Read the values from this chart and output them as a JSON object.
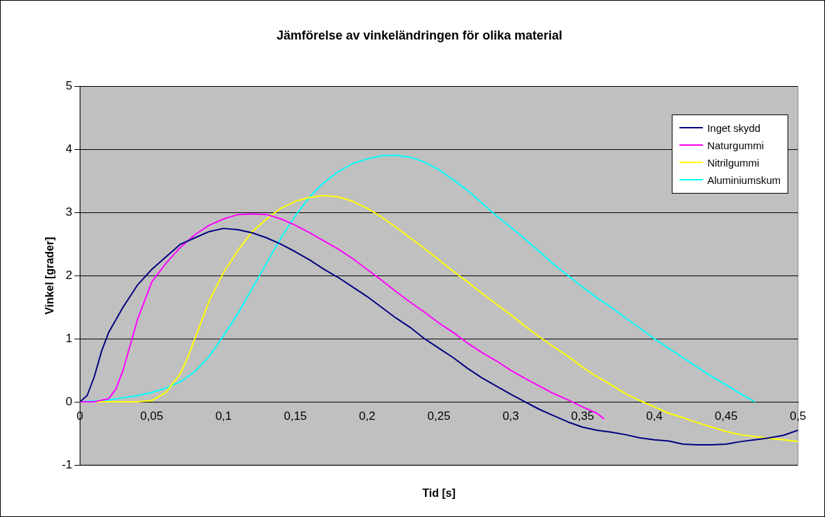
{
  "chart_data": {
    "type": "line",
    "title": "Jämförelse av vinkeländringen för olika material",
    "xlabel": "Tid [s]",
    "ylabel": "Vinkel [grader]",
    "xlim": [
      0,
      0.5
    ],
    "xticks": [
      0,
      {
        "value": 0.05,
        "label": "0,05"
      },
      {
        "value": 0.1,
        "label": "0,1"
      },
      {
        "value": 0.15,
        "label": "0,15"
      },
      {
        "value": 0.2,
        "label": "0,2"
      },
      {
        "value": 0.25,
        "label": "0,25"
      },
      {
        "value": 0.3,
        "label": "0,3"
      },
      {
        "value": 0.35,
        "label": "0,35"
      },
      {
        "value": 0.4,
        "label": "0,4"
      },
      {
        "value": 0.45,
        "label": "0,45"
      },
      {
        "value": 0.5,
        "label": "0,5"
      }
    ],
    "ylim": [
      -1,
      5
    ],
    "yticks": [
      -1,
      0,
      1,
      2,
      3,
      4,
      5
    ],
    "grid": "y",
    "legend": "top right",
    "marker": "none",
    "line_style": "solid",
    "series": [
      {
        "name": "Inget skydd",
        "color": "#000080",
        "x": [
          0,
          0.005,
          0.01,
          0.015,
          0.02,
          0.03,
          0.04,
          0.05,
          0.06,
          0.07,
          0.08,
          0.09,
          0.1,
          0.11,
          0.12,
          0.13,
          0.14,
          0.15,
          0.16,
          0.17,
          0.18,
          0.19,
          0.2,
          0.21,
          0.22,
          0.23,
          0.24,
          0.25,
          0.26,
          0.27,
          0.28,
          0.29,
          0.3,
          0.31,
          0.32,
          0.33,
          0.34,
          0.35,
          0.36,
          0.37,
          0.38,
          0.39,
          0.4,
          0.41,
          0.42,
          0.43,
          0.44,
          0.45,
          0.46,
          0.47,
          0.48,
          0.49,
          0.5
        ],
        "values": [
          0,
          0.1,
          0.4,
          0.8,
          1.1,
          1.5,
          1.85,
          2.1,
          2.3,
          2.5,
          2.6,
          2.7,
          2.75,
          2.73,
          2.68,
          2.6,
          2.5,
          2.38,
          2.25,
          2.1,
          1.97,
          1.82,
          1.67,
          1.5,
          1.33,
          1.18,
          1,
          0.85,
          0.7,
          0.53,
          0.38,
          0.25,
          0.12,
          0,
          -0.12,
          -0.22,
          -0.32,
          -0.4,
          -0.45,
          -0.48,
          -0.52,
          -0.57,
          -0.6,
          -0.62,
          -0.67,
          -0.68,
          -0.68,
          -0.67,
          -0.63,
          -0.6,
          -0.57,
          -0.53,
          -0.45
        ]
      },
      {
        "name": "Naturgummi",
        "color": "#ff00ff",
        "x": [
          0,
          0.01,
          0.02,
          0.025,
          0.03,
          0.035,
          0.04,
          0.045,
          0.05,
          0.06,
          0.07,
          0.08,
          0.09,
          0.1,
          0.11,
          0.12,
          0.13,
          0.14,
          0.15,
          0.16,
          0.17,
          0.18,
          0.19,
          0.2,
          0.21,
          0.22,
          0.23,
          0.24,
          0.25,
          0.26,
          0.27,
          0.28,
          0.29,
          0.3,
          0.31,
          0.32,
          0.33,
          0.34,
          0.35,
          0.36,
          0.365
        ],
        "values": [
          0,
          0,
          0.05,
          0.2,
          0.5,
          0.9,
          1.3,
          1.6,
          1.9,
          2.2,
          2.45,
          2.65,
          2.8,
          2.9,
          2.97,
          2.98,
          2.97,
          2.9,
          2.8,
          2.68,
          2.55,
          2.42,
          2.27,
          2.1,
          1.93,
          1.75,
          1.58,
          1.42,
          1.25,
          1.1,
          0.93,
          0.78,
          0.65,
          0.5,
          0.37,
          0.25,
          0.13,
          0.03,
          -0.08,
          -0.18,
          -0.27
        ]
      },
      {
        "name": "Nitrilgummi",
        "color": "#ffff00",
        "x": [
          0,
          0.04,
          0.05,
          0.06,
          0.07,
          0.075,
          0.08,
          0.085,
          0.09,
          0.1,
          0.11,
          0.12,
          0.13,
          0.14,
          0.15,
          0.16,
          0.17,
          0.18,
          0.19,
          0.2,
          0.21,
          0.22,
          0.23,
          0.24,
          0.25,
          0.26,
          0.27,
          0.28,
          0.29,
          0.3,
          0.31,
          0.32,
          0.33,
          0.34,
          0.35,
          0.36,
          0.37,
          0.38,
          0.39,
          0.4,
          0.41,
          0.42,
          0.43,
          0.44,
          0.45,
          0.46,
          0.47,
          0.48,
          0.49,
          0.5
        ],
        "values": [
          0,
          0,
          0.02,
          0.15,
          0.45,
          0.7,
          1,
          1.3,
          1.6,
          2.05,
          2.4,
          2.7,
          2.9,
          3.07,
          3.18,
          3.24,
          3.27,
          3.25,
          3.18,
          3.07,
          2.93,
          2.77,
          2.6,
          2.43,
          2.25,
          2.07,
          1.9,
          1.72,
          1.55,
          1.38,
          1.2,
          1.03,
          0.87,
          0.72,
          0.55,
          0.4,
          0.27,
          0.13,
          0.02,
          -0.08,
          -0.18,
          -0.25,
          -0.33,
          -0.4,
          -0.47,
          -0.52,
          -0.55,
          -0.58,
          -0.6,
          -0.63
        ]
      },
      {
        "name": "Aluminiumskum",
        "color": "#00ffff",
        "x": [
          0,
          0.02,
          0.04,
          0.05,
          0.06,
          0.07,
          0.08,
          0.09,
          0.1,
          0.11,
          0.12,
          0.13,
          0.14,
          0.15,
          0.16,
          0.17,
          0.18,
          0.19,
          0.2,
          0.21,
          0.22,
          0.23,
          0.24,
          0.25,
          0.26,
          0.27,
          0.28,
          0.29,
          0.3,
          0.31,
          0.32,
          0.33,
          0.34,
          0.35,
          0.36,
          0.37,
          0.38,
          0.39,
          0.4,
          0.41,
          0.42,
          0.43,
          0.44,
          0.45,
          0.46,
          0.47
        ],
        "values": [
          0,
          0.03,
          0.1,
          0.15,
          0.22,
          0.32,
          0.48,
          0.72,
          1.05,
          1.4,
          1.8,
          2.2,
          2.6,
          2.95,
          3.25,
          3.48,
          3.65,
          3.78,
          3.85,
          3.9,
          3.91,
          3.88,
          3.8,
          3.68,
          3.52,
          3.35,
          3.15,
          2.95,
          2.77,
          2.58,
          2.38,
          2.18,
          2,
          1.82,
          1.65,
          1.5,
          1.33,
          1.17,
          1,
          0.85,
          0.7,
          0.55,
          0.4,
          0.27,
          0.13,
          0
        ]
      }
    ]
  }
}
